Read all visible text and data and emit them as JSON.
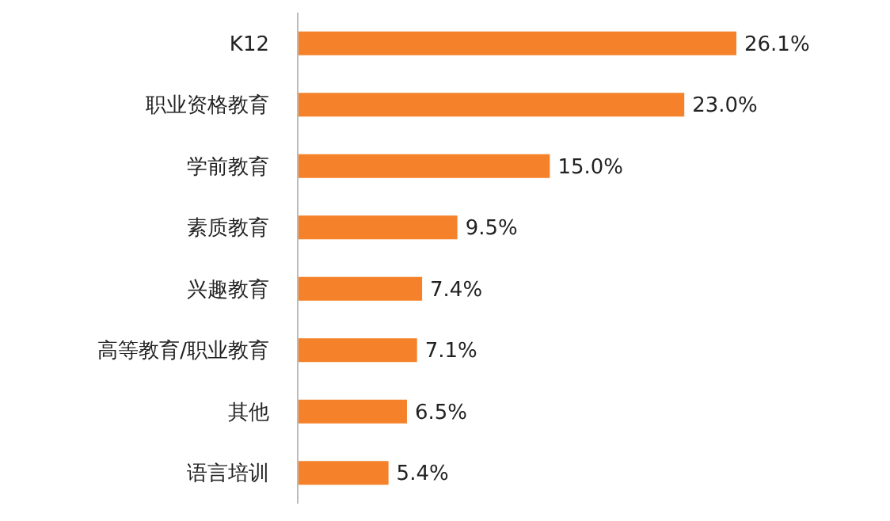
{
  "chart_data": {
    "type": "bar",
    "orientation": "horizontal",
    "categories": [
      "K12",
      "职业资格教育",
      "学前教育",
      "素质教育",
      "兴趣教育",
      "高等教育/职业教育",
      "其他",
      "语言培训"
    ],
    "values": [
      26.1,
      23.0,
      15.0,
      9.5,
      7.4,
      7.1,
      6.5,
      5.4
    ],
    "value_labels": [
      "26.1%",
      "23.0%",
      "15.0%",
      "9.5%",
      "7.4%",
      "7.1%",
      "6.5%",
      "5.4%"
    ],
    "color": "#f5822a"
  }
}
